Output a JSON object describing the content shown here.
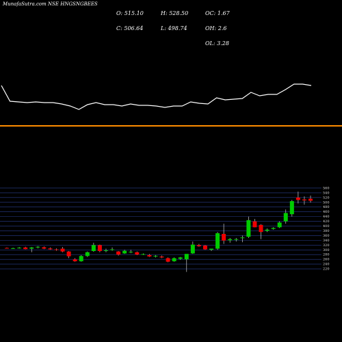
{
  "chart_data": [
    {
      "type": "line",
      "title": "MunafaSutra.com NSE HNGSNGBEES",
      "color": "#ffffff",
      "values": [
        45,
        22,
        21,
        20,
        21,
        20,
        20,
        18,
        15,
        10,
        17,
        20,
        17,
        17,
        15,
        18,
        16,
        16,
        15,
        13,
        15,
        15,
        21,
        19,
        18,
        27,
        24,
        25,
        26,
        35,
        30,
        32,
        32,
        39,
        47,
        47,
        45
      ],
      "ylim": [
        0,
        50
      ],
      "stats": [
        {
          "label": "O: 515.10"
        },
        {
          "label": "H: 528.50"
        },
        {
          "label": "OC: 1.67"
        },
        {
          "label": "C: 506.64"
        },
        {
          "label": "L: 498.74"
        },
        {
          "label": "OH: 2.6"
        },
        {
          "label": "OL: 3.28"
        }
      ]
    },
    {
      "type": "candlestick",
      "up_color": "#00cc00",
      "down_color": "#ee0000",
      "grid_color": "#2b3f8f",
      "ylim": [
        200,
        580
      ],
      "yticks": [
        220,
        240,
        260,
        280,
        300,
        320,
        340,
        360,
        380,
        400,
        420,
        440,
        460,
        480,
        500,
        520,
        540,
        560
      ],
      "open": [
        308,
        306,
        307,
        310,
        305,
        310,
        311,
        306,
        302,
        305,
        293,
        260,
        252,
        274,
        295,
        320,
        297,
        300,
        293,
        285,
        292,
        290,
        282,
        278,
        272,
        272,
        265,
        252,
        262,
        260,
        285,
        320,
        318,
        300,
        305,
        367,
        340,
        345,
        350,
        355,
        420,
        405,
        380,
        388,
        395,
        420,
        450,
        520,
        512,
        515.1
      ],
      "high": [
        310,
        309,
        312,
        313,
        312,
        316,
        314,
        310,
        306,
        312,
        295,
        265,
        278,
        293,
        330,
        322,
        305,
        310,
        295,
        300,
        300,
        293,
        285,
        282,
        278,
        276,
        268,
        268,
        270,
        280,
        335,
        325,
        320,
        305,
        375,
        410,
        350,
        350,
        360,
        440,
        430,
        408,
        390,
        395,
        420,
        470,
        510,
        545,
        525,
        528.5
      ],
      "low": [
        305,
        304,
        305,
        302,
        290,
        306,
        303,
        300,
        296,
        290,
        265,
        250,
        250,
        270,
        292,
        290,
        290,
        296,
        276,
        283,
        286,
        278,
        278,
        270,
        268,
        265,
        248,
        250,
        258,
        207,
        283,
        313,
        300,
        295,
        300,
        325,
        330,
        335,
        332,
        350,
        395,
        345,
        375,
        385,
        392,
        410,
        440,
        495,
        490,
        498.74
      ],
      "close": [
        306,
        307,
        309,
        303,
        310,
        313,
        305,
        302,
        300,
        293,
        273,
        252,
        274,
        290,
        320,
        295,
        298,
        302,
        280,
        296,
        292,
        280,
        282,
        272,
        275,
        268,
        250,
        265,
        268,
        283,
        322,
        315,
        302,
        305,
        370,
        339,
        345,
        345,
        352,
        425,
        395,
        375,
        385,
        392,
        415,
        455,
        505,
        510,
        508,
        506.64
      ]
    }
  ]
}
